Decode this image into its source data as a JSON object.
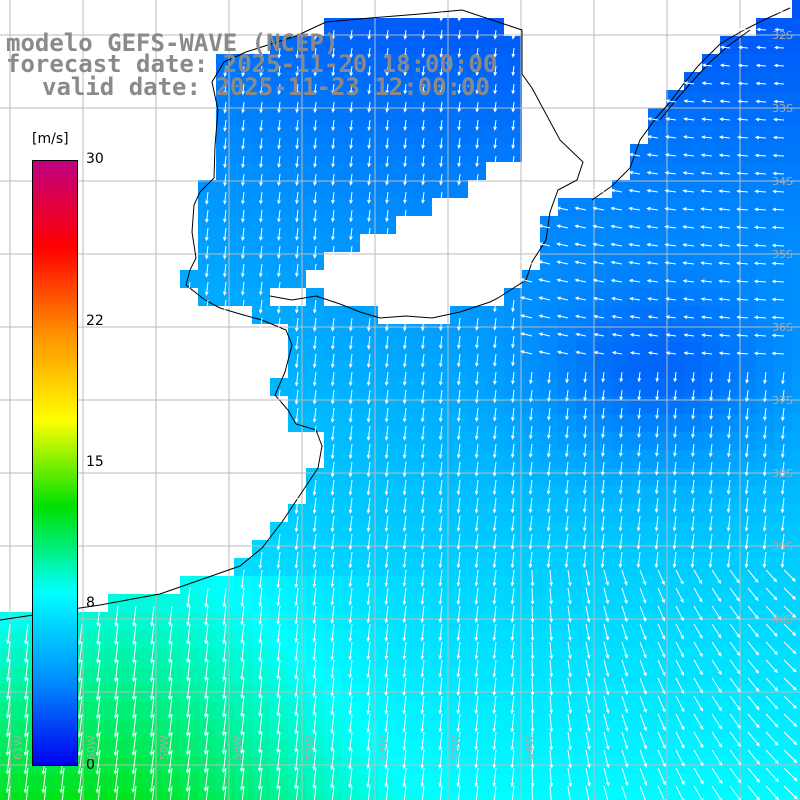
{
  "title": {
    "line1": "modelo GEFS-WAVE (NCEP)",
    "line2": "forecast date: 2025-11-20 18:00:00",
    "line3": "valid date: 2025-11-23 12:00:00"
  },
  "colorbar": {
    "unit": "[m/s]",
    "min": 0,
    "max": 30,
    "ticks": [
      "30",
      "22",
      "15",
      "8",
      "0"
    ],
    "tick_values": [
      30,
      22,
      15,
      8,
      0
    ],
    "colors": [
      "#0000ee",
      "#0090ff",
      "#00ffff",
      "#00e000",
      "#ffff00",
      "#ff9000",
      "#ff0000",
      "#c00080"
    ]
  },
  "map": {
    "variable": "wind speed and direction",
    "region": "Rio de la Plata / Uruguay coast / SW Atlantic",
    "lon_labels": [
      "61W",
      "60W",
      "59W",
      "58W",
      "57W",
      "56W",
      "55W",
      "54W"
    ],
    "lat_labels": [
      "32S",
      "33S",
      "34S",
      "35S",
      "36S",
      "37S",
      "38S",
      "39S",
      "40S"
    ],
    "colors": {
      "land": "#ffffff",
      "coastline": "#000000",
      "grid": "#bbbbbb",
      "arrows": "#ffffff"
    }
  }
}
